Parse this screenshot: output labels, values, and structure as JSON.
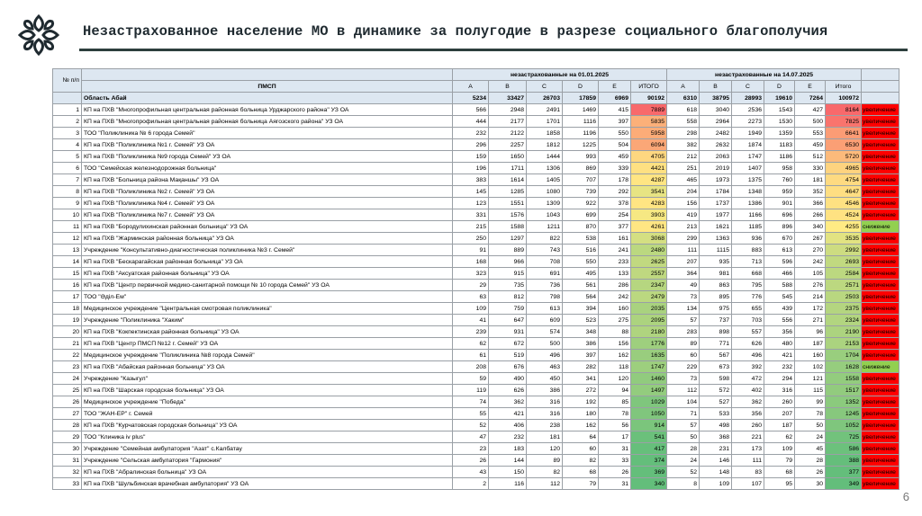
{
  "title": "Незастрахованное население МО в динамике за полугодие в разрезе социального благополучия",
  "page_number": "6",
  "colors": {
    "high": "#f8696b",
    "mid": "#ffeb84",
    "low": "#63be7b",
    "up": "#ff0000",
    "down": "#92d050",
    "header": "#dde7f1"
  },
  "table": {
    "col_num": "№ п/п",
    "col_name": "ПМСП",
    "group1": "незастрахованные на 01.01.2025",
    "group2": "незастрахованные на 14.07.2025",
    "letters": [
      "A",
      "B",
      "C",
      "D",
      "E"
    ],
    "total_label_1": "ИТОГО",
    "total_label_2": "Итого",
    "region": {
      "name": "Область Абай",
      "v1": [
        5234,
        33427,
        26703,
        17859,
        6969
      ],
      "t1": 90192,
      "v2": [
        6310,
        38795,
        28993,
        19610,
        7264
      ],
      "t2": 100972
    },
    "rows": [
      {
        "n": "1",
        "name": "КП на ПХВ \"Многопрофильная центральная районная больница Урджарского района\" УЗ ОА",
        "v1": [
          566,
          2948,
          2491,
          1469,
          415
        ],
        "t1": 7889,
        "v2": [
          618,
          3040,
          2536,
          1543,
          427
        ],
        "t2": 8164,
        "trend": "увеличение"
      },
      {
        "n": "2",
        "name": "КП на ПХВ \"Многопрофильная центральная районная больница Аягозского района\" УЗ ОА",
        "v1": [
          444,
          2177,
          1701,
          1116,
          397
        ],
        "t1": 5835,
        "v2": [
          558,
          2964,
          2273,
          1530,
          500
        ],
        "t2": 7825,
        "trend": "увеличение"
      },
      {
        "n": "3",
        "name": "ТОО \"Поликлиника № 6 города Семей\"",
        "v1": [
          232,
          2122,
          1858,
          1196,
          550
        ],
        "t1": 5958,
        "v2": [
          298,
          2482,
          1949,
          1359,
          553
        ],
        "t2": 6641,
        "trend": "увеличение"
      },
      {
        "n": "4",
        "name": "КП на ПХВ \"Поликлиника №1 г. Семей\" УЗ ОА",
        "v1": [
          296,
          2257,
          1812,
          1225,
          504
        ],
        "t1": 6094,
        "v2": [
          382,
          2632,
          1874,
          1183,
          459
        ],
        "t2": 6530,
        "trend": "увеличение"
      },
      {
        "n": "5",
        "name": "КП на ПХВ \"Поликлиника №9 города Семей\" УЗ ОА",
        "v1": [
          159,
          1650,
          1444,
          993,
          459
        ],
        "t1": 4705,
        "v2": [
          212,
          2063,
          1747,
          1186,
          512
        ],
        "t2": 5720,
        "trend": "увеличение"
      },
      {
        "n": "6",
        "name": "ТОО \"Семейская железнодорожная больница\"",
        "v1": [
          196,
          1711,
          1306,
          869,
          339
        ],
        "t1": 4421,
        "v2": [
          251,
          2019,
          1407,
          958,
          330
        ],
        "t2": 4965,
        "trend": "увеличение"
      },
      {
        "n": "7",
        "name": "КП на ПХВ \"Больница района Мақаншы\" УЗ ОА",
        "v1": [
          383,
          1614,
          1405,
          707,
          178
        ],
        "t1": 4287,
        "v2": [
          465,
          1973,
          1375,
          760,
          181
        ],
        "t2": 4754,
        "trend": "увеличение"
      },
      {
        "n": "8",
        "name": "КП на ПХВ \"Поликлиника №2 г. Семей\" УЗ ОА",
        "v1": [
          145,
          1285,
          1080,
          739,
          292
        ],
        "t1": 3541,
        "v2": [
          204,
          1784,
          1348,
          959,
          352
        ],
        "t2": 4647,
        "trend": "увеличение"
      },
      {
        "n": "9",
        "name": "КП на ПХВ \"Поликлиника №4 г. Семей\" УЗ ОА",
        "v1": [
          123,
          1551,
          1309,
          922,
          378
        ],
        "t1": 4283,
        "v2": [
          156,
          1737,
          1386,
          901,
          366
        ],
        "t2": 4546,
        "trend": "увеличение"
      },
      {
        "n": "10",
        "name": "КП на ПХВ \"Поликлиника №7 г. Семей\" УЗ ОА",
        "v1": [
          331,
          1576,
          1043,
          699,
          254
        ],
        "t1": 3903,
        "v2": [
          419,
          1977,
          1166,
          696,
          266
        ],
        "t2": 4524,
        "trend": "увеличение"
      },
      {
        "n": "11",
        "name": "КП на ПХВ \"Бородулихинская районная больница\" УЗ ОА",
        "v1": [
          215,
          1588,
          1211,
          870,
          377
        ],
        "t1": 4261,
        "v2": [
          213,
          1621,
          1185,
          896,
          340
        ],
        "t2": 4255,
        "trend": "снижение"
      },
      {
        "n": "12",
        "name": "КП на ПХВ \"Жарминская районная больница\" УЗ ОА",
        "v1": [
          250,
          1297,
          822,
          538,
          161
        ],
        "t1": 3068,
        "v2": [
          299,
          1363,
          936,
          670,
          267
        ],
        "t2": 3535,
        "trend": "увеличение"
      },
      {
        "n": "13",
        "name": "Учреждение \"Консультативно-диагностическая поликлиника №3 г. Семей\"",
        "v1": [
          91,
          889,
          743,
          516,
          241
        ],
        "t1": 2480,
        "v2": [
          111,
          1115,
          883,
          613,
          270
        ],
        "t2": 2992,
        "trend": "увеличение"
      },
      {
        "n": "14",
        "name": "КП на ПХВ \"Бескарагайская районная больница\" УЗ ОА",
        "v1": [
          168,
          966,
          708,
          550,
          233
        ],
        "t1": 2625,
        "v2": [
          207,
          935,
          713,
          596,
          242
        ],
        "t2": 2693,
        "trend": "увеличение"
      },
      {
        "n": "15",
        "name": "КП на ПХВ \"Аксуатская районная больница\" УЗ ОА",
        "v1": [
          323,
          915,
          691,
          495,
          133
        ],
        "t1": 2557,
        "v2": [
          364,
          981,
          668,
          466,
          105
        ],
        "t2": 2584,
        "trend": "увеличение"
      },
      {
        "n": "16",
        "name": "КП на ПХВ \"Центр первичной медико-санитарной помощи № 10 города Семей\" УЗ ОА",
        "v1": [
          29,
          735,
          736,
          561,
          286
        ],
        "t1": 2347,
        "v2": [
          49,
          863,
          795,
          588,
          276
        ],
        "t2": 2571,
        "trend": "увеличение"
      },
      {
        "n": "17",
        "name": "ТОО \"Әділ-Ем\"",
        "v1": [
          63,
          812,
          798,
          564,
          242
        ],
        "t1": 2479,
        "v2": [
          73,
          895,
          776,
          545,
          214
        ],
        "t2": 2503,
        "trend": "увеличение"
      },
      {
        "n": "18",
        "name": "Медицинское учреждение \"Центральная смотровая поликлиника\"",
        "v1": [
          109,
          759,
          613,
          394,
          160
        ],
        "t1": 2035,
        "v2": [
          134,
          975,
          655,
          439,
          172
        ],
        "t2": 2375,
        "trend": "увеличение"
      },
      {
        "n": "19",
        "name": "Учреждение \"Поликлиника \"Хаким\"",
        "v1": [
          41,
          647,
          609,
          523,
          275
        ],
        "t1": 2095,
        "v2": [
          57,
          737,
          703,
          556,
          271
        ],
        "t2": 2324,
        "trend": "увеличение"
      },
      {
        "n": "20",
        "name": "КП на ПХВ \"Кокпектинская районная больница\" УЗ ОА",
        "v1": [
          239,
          931,
          574,
          348,
          88
        ],
        "t1": 2180,
        "v2": [
          283,
          898,
          557,
          356,
          96
        ],
        "t2": 2190,
        "trend": "увеличение"
      },
      {
        "n": "21",
        "name": "КП на ПХВ \"Центр ПМСП №12 г. Семей\" УЗ ОА",
        "v1": [
          62,
          672,
          500,
          386,
          156
        ],
        "t1": 1776,
        "v2": [
          89,
          771,
          626,
          480,
          187
        ],
        "t2": 2153,
        "trend": "увеличение"
      },
      {
        "n": "22",
        "name": "Медицинское учреждение \"Поликлиника №8 города Семей\"",
        "v1": [
          61,
          519,
          496,
          397,
          162
        ],
        "t1": 1635,
        "v2": [
          60,
          567,
          496,
          421,
          160
        ],
        "t2": 1704,
        "trend": "увеличение"
      },
      {
        "n": "23",
        "name": "КП на ПХВ \"Абайская районная больница\" УЗ ОА",
        "v1": [
          208,
          676,
          463,
          282,
          118
        ],
        "t1": 1747,
        "v2": [
          229,
          673,
          392,
          232,
          102
        ],
        "t2": 1628,
        "trend": "снижение"
      },
      {
        "n": "24",
        "name": "Учреждение \"Казыгул\"",
        "v1": [
          59,
          490,
          450,
          341,
          120
        ],
        "t1": 1460,
        "v2": [
          73,
          598,
          472,
          294,
          121
        ],
        "t2": 1558,
        "trend": "увеличение"
      },
      {
        "n": "25",
        "name": "КП на ПХВ \"Шарская городская больница\" УЗ ОА",
        "v1": [
          119,
          626,
          386,
          272,
          94
        ],
        "t1": 1497,
        "v2": [
          112,
          572,
          402,
          316,
          115
        ],
        "t2": 1517,
        "trend": "увеличение"
      },
      {
        "n": "26",
        "name": "Медицинское учреждение \"Победа\"",
        "v1": [
          74,
          362,
          316,
          192,
          85
        ],
        "t1": 1029,
        "v2": [
          104,
          527,
          362,
          260,
          99
        ],
        "t2": 1352,
        "trend": "увеличение"
      },
      {
        "n": "27",
        "name": "ТОО \"ЖАН-ЕР\" г. Семей",
        "v1": [
          55,
          421,
          316,
          180,
          78
        ],
        "t1": 1050,
        "v2": [
          71,
          533,
          356,
          207,
          78
        ],
        "t2": 1245,
        "trend": "увеличение"
      },
      {
        "n": "28",
        "name": "КП на ПХВ \"Курчатовская городская больница\" УЗ ОА",
        "v1": [
          52,
          406,
          238,
          162,
          56
        ],
        "t1": 914,
        "v2": [
          57,
          498,
          260,
          187,
          50
        ],
        "t2": 1052,
        "trend": "увеличение"
      },
      {
        "n": "29",
        "name": "ТОО \"Клиника iv plus\"",
        "v1": [
          47,
          232,
          181,
          64,
          17
        ],
        "t1": 541,
        "v2": [
          50,
          368,
          221,
          62,
          24
        ],
        "t2": 725,
        "trend": "увеличение"
      },
      {
        "n": "30",
        "name": "Учреждение \"Семейная амбулатория \"Азат\" с.Калбатау",
        "v1": [
          23,
          183,
          120,
          60,
          31
        ],
        "t1": 417,
        "v2": [
          28,
          231,
          173,
          109,
          45
        ],
        "t2": 586,
        "trend": "увеличение"
      },
      {
        "n": "31",
        "name": "Учреждение \"Сельская амбулатория \"Гармония\"",
        "v1": [
          26,
          144,
          89,
          82,
          33
        ],
        "t1": 374,
        "v2": [
          24,
          146,
          111,
          79,
          28
        ],
        "t2": 388,
        "trend": "увеличение"
      },
      {
        "n": "32",
        "name": "КП на ПХВ \"Абралинская больница\" УЗ ОА",
        "v1": [
          43,
          150,
          82,
          68,
          26
        ],
        "t1": 369,
        "v2": [
          52,
          148,
          83,
          68,
          26
        ],
        "t2": 377,
        "trend": "увеличение"
      },
      {
        "n": "33",
        "name": "КП на ПХВ \"Шульбинская врачебная амбулатория\" УЗ ОА",
        "v1": [
          2,
          116,
          112,
          79,
          31
        ],
        "t1": 340,
        "v2": [
          8,
          109,
          107,
          95,
          30
        ],
        "t2": 349,
        "trend": "увеличение"
      }
    ]
  }
}
